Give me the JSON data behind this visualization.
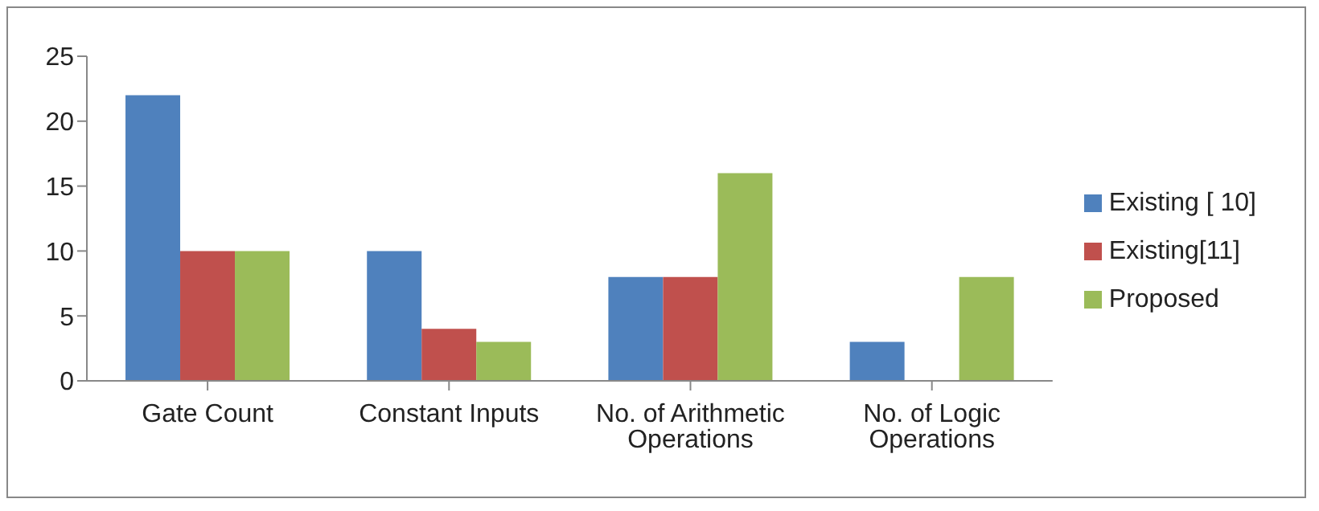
{
  "chart_data": {
    "type": "bar",
    "categories": [
      "Gate Count",
      "Constant Inputs",
      "No. of Arithmetic Operations",
      "No. of Logic Operations"
    ],
    "series": [
      {
        "name": "Existing [ 10]",
        "color": "#4f81bd",
        "values": [
          22,
          10,
          8,
          3
        ]
      },
      {
        "name": "Existing[11]",
        "color": "#c0504d",
        "values": [
          10,
          4,
          8,
          0
        ]
      },
      {
        "name": "Proposed",
        "color": "#9bbb59",
        "values": [
          10,
          3,
          16,
          8
        ]
      }
    ],
    "ylim": [
      0,
      25
    ],
    "yticks": [
      0,
      5,
      10,
      15,
      20,
      25
    ],
    "grid": false,
    "legend": "right"
  }
}
